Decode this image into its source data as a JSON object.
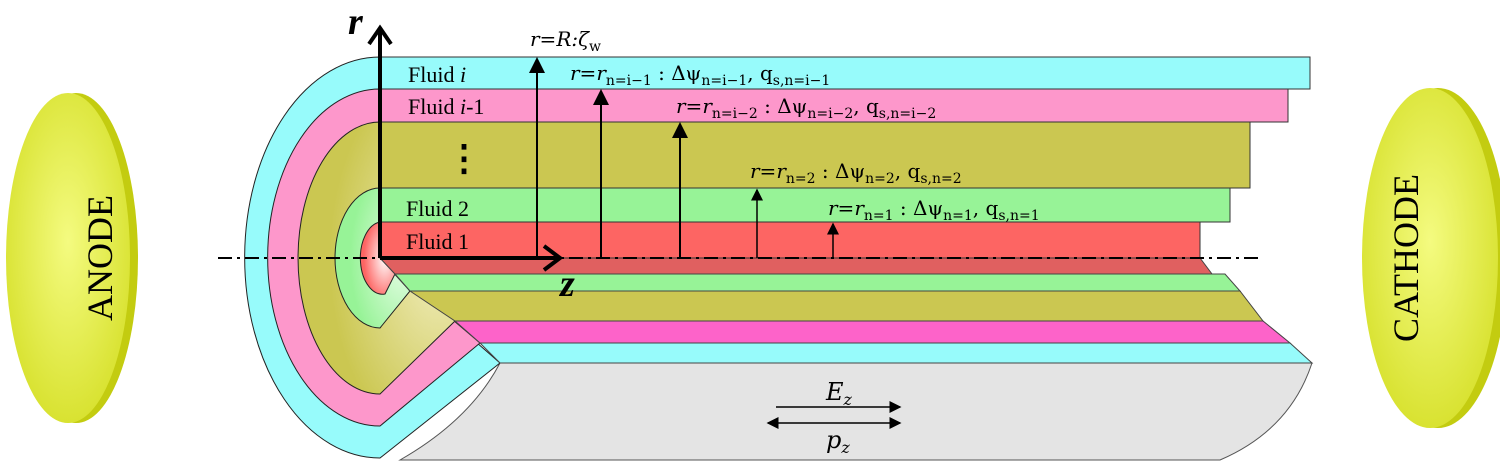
{
  "colors": {
    "cyan": "#97fbfb",
    "pink": "#fd97cb",
    "olive": "#cbc751",
    "green": "#97f397",
    "red": "#fd6563",
    "red_dark": "#e06060",
    "magenta": "#fd63c9",
    "gray": "#e4e4e4",
    "electrode": "#dde83a",
    "electrode_edge": "#c3cc10"
  },
  "electrodes": {
    "left": "ANODE",
    "right": "CATHODE"
  },
  "axes": {
    "r": "r",
    "z": "z"
  },
  "fluids": [
    {
      "pre": "Fluid ",
      "it": "i",
      "post": ""
    },
    {
      "pre": "Fluid ",
      "it": "i",
      "post": "-1"
    },
    {
      "pre": "Fluid 2",
      "it": "",
      "post": ""
    },
    {
      "pre": "Fluid 1",
      "it": "",
      "post": ""
    }
  ],
  "ellipsis": "⋮",
  "interface_labels": [
    [
      {
        "t": "r=R:ζ"
      },
      {
        "t": "w",
        "sub": true
      }
    ],
    [
      {
        "t": "r=r"
      },
      {
        "t": "n=i−1",
        "sub": true
      },
      {
        "t": " : Δψ"
      },
      {
        "t": "n=i−1",
        "sub": true
      },
      {
        "t": ", q"
      },
      {
        "t": "s,n=i−1",
        "sub": true
      }
    ],
    [
      {
        "t": "r=r"
      },
      {
        "t": "n=i−2",
        "sub": true
      },
      {
        "t": " : Δψ"
      },
      {
        "t": "n=i−2",
        "sub": true
      },
      {
        "t": ", q"
      },
      {
        "t": "s,n=i−2",
        "sub": true
      }
    ],
    [
      {
        "t": "r=r"
      },
      {
        "t": "n=2",
        "sub": true
      },
      {
        "t": " : Δψ"
      },
      {
        "t": "n=2",
        "sub": true
      },
      {
        "t": ", q"
      },
      {
        "t": "s,n=2",
        "sub": true
      }
    ],
    [
      {
        "t": "r=r"
      },
      {
        "t": "n=1",
        "sub": true
      },
      {
        "t": " : Δψ"
      },
      {
        "t": "n=1",
        "sub": true
      },
      {
        "t": ", q"
      },
      {
        "t": "s,n=1",
        "sub": true
      }
    ]
  ],
  "field": {
    "E": "E",
    "E_sub": "z",
    "p": "p",
    "p_sub": "z"
  }
}
